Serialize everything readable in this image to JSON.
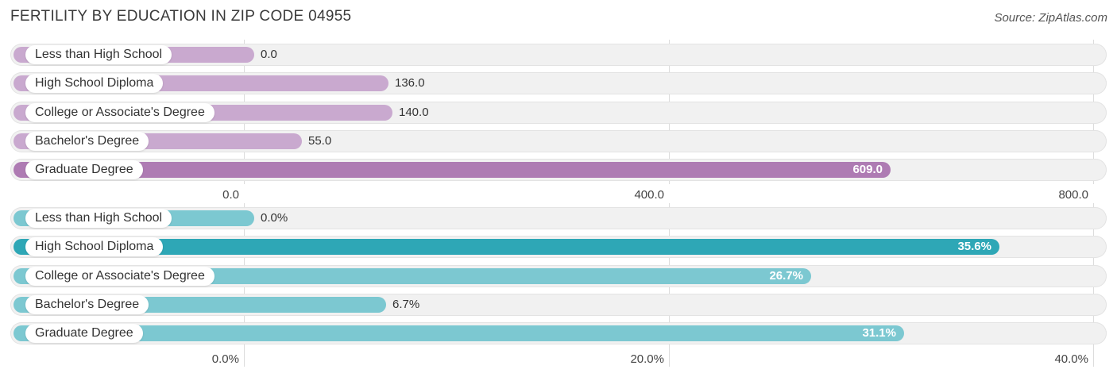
{
  "title": "FERTILITY BY EDUCATION IN ZIP CODE 04955",
  "source": "Source: ZipAtlas.com",
  "colors": {
    "purple_light": "#c9a9cf",
    "purple_dark": "#ae7bb3",
    "teal_light": "#7cc8d1",
    "teal_dark": "#2ea7b6"
  },
  "chart_data": [
    {
      "type": "bar",
      "orientation": "horizontal",
      "categories": [
        "Less than High School",
        "High School Diploma",
        "College or Associate's Degree",
        "Bachelor's Degree",
        "Graduate Degree"
      ],
      "values": [
        0.0,
        136.0,
        140.0,
        55.0,
        609.0
      ],
      "value_labels": [
        "0.0",
        "136.0",
        "140.0",
        "55.0",
        "609.0"
      ],
      "xlim": [
        0,
        800
      ],
      "ticks": [
        0,
        400,
        800
      ],
      "tick_labels": [
        "0.0",
        "400.0",
        "800.0"
      ],
      "grid": true,
      "highlight_index": 4
    },
    {
      "type": "bar",
      "orientation": "horizontal",
      "categories": [
        "Less than High School",
        "High School Diploma",
        "College or Associate's Degree",
        "Bachelor's Degree",
        "Graduate Degree"
      ],
      "values": [
        0.0,
        35.6,
        26.7,
        6.7,
        31.1
      ],
      "value_labels": [
        "0.0%",
        "35.6%",
        "26.7%",
        "6.7%",
        "31.1%"
      ],
      "xlim": [
        0,
        40
      ],
      "ticks": [
        0,
        20,
        40
      ],
      "tick_labels": [
        "0.0%",
        "20.0%",
        "40.0%"
      ],
      "grid": true,
      "highlight_index": 1
    }
  ]
}
